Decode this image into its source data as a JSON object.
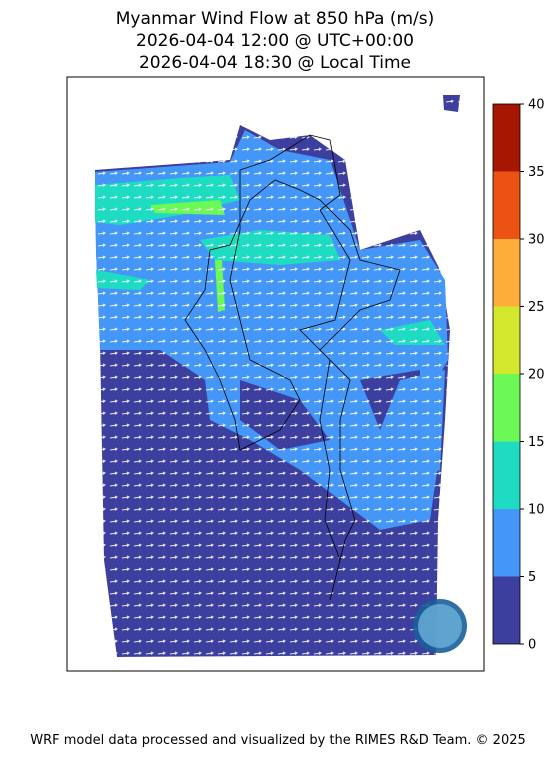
{
  "title": [
    "Myanmar Wind Flow at 850 hPa (m/s)",
    "2026-04-04 12:00 @ UTC+00:00",
    "2026-04-04 18:30 @ Local Time"
  ],
  "colorbar": {
    "ticks": [
      0,
      5,
      10,
      15,
      20,
      25,
      30,
      35,
      40
    ],
    "colors": [
      "#3d3f9e",
      "#4497f7",
      "#1edcc2",
      "#6cf956",
      "#d3e82c",
      "#fdae3a",
      "#ec5213",
      "#a61600"
    ]
  },
  "footer": "WRF model data processed and visualized by the RIMES R&D Team. © 2025"
}
